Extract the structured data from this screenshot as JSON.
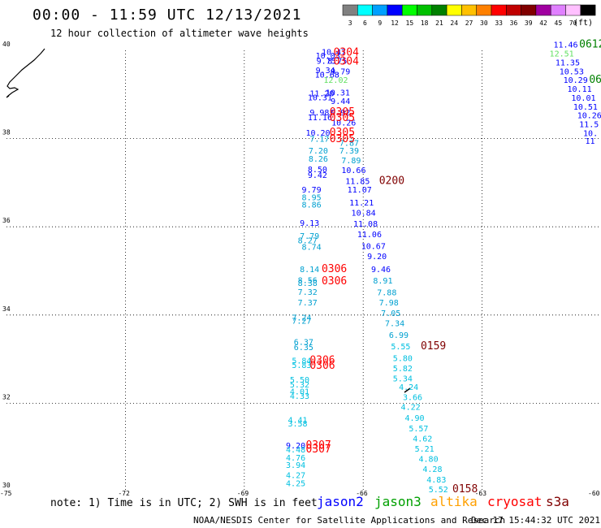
{
  "header": {
    "title": "00:00 - 11:59 UTC 12/13/2021",
    "subtitle": "12 hour collection of altimeter wave heights"
  },
  "legend": {
    "unit": "(ft)",
    "bins": [
      {
        "label": "3",
        "color": "#808080"
      },
      {
        "label": "6",
        "color": "#00ffff"
      },
      {
        "label": "9",
        "color": "#00a0ff"
      },
      {
        "label": "12",
        "color": "#0000ff"
      },
      {
        "label": "15",
        "color": "#00ff00"
      },
      {
        "label": "18",
        "color": "#00c000"
      },
      {
        "label": "21",
        "color": "#008000"
      },
      {
        "label": "24",
        "color": "#ffff00"
      },
      {
        "label": "27",
        "color": "#ffc000"
      },
      {
        "label": "30",
        "color": "#ff8000"
      },
      {
        "label": "33",
        "color": "#ff0000"
      },
      {
        "label": "36",
        "color": "#c00000"
      },
      {
        "label": "39",
        "color": "#800000"
      },
      {
        "label": "42",
        "color": "#a000a0"
      },
      {
        "label": "45",
        "color": "#e080ff"
      },
      {
        "label": "70",
        "color": "#ffc0ff"
      },
      {
        "label": "",
        "color": "#000000"
      }
    ]
  },
  "axes": {
    "lat_labels": [
      "40",
      "38",
      "36",
      "34",
      "32",
      "30"
    ],
    "lon_labels": [
      "-75",
      "-72",
      "-69",
      "-66",
      "-63",
      "-60"
    ]
  },
  "colors": {
    "jason2": "#0000ff",
    "jason3": "#00a000",
    "altika": "#ffa000",
    "cryosat": "#ff0000",
    "s3a": "#800000",
    "cyan": "#00c0e0",
    "lightblue": "#00a0d0",
    "green_lt": "#60e060"
  },
  "note": "note: 1) Time is in UTC; 2) SWH is in feet",
  "satellites": [
    {
      "name": "jason2",
      "color": "#0000ff"
    },
    {
      "name": "jason3",
      "color": "#00a000"
    },
    {
      "name": "altika",
      "color": "#ffa000"
    },
    {
      "name": "cryosat",
      "color": "#ff0000"
    },
    {
      "name": "s3a",
      "color": "#800000"
    }
  ],
  "footer": "NOAA/NESDIS Center for Satellite Applications and Research",
  "timestamp": "Dec 17 15:44:32 UTC 2021",
  "track_west": [
    {
      "t": "10.47",
      "c": "#0000ff",
      "lon": -67.05,
      "lat": 39.9
    },
    {
      "t": "10.03",
      "c": "#0000ff",
      "lon": -67.2,
      "lat": 39.82
    },
    {
      "t": "9.75",
      "c": "#0000ff",
      "lon": -67.18,
      "lat": 39.7
    },
    {
      "t": "8.75",
      "c": "#0000ff",
      "lon": -66.9,
      "lat": 39.7
    },
    {
      "t": "9.34",
      "c": "#0000ff",
      "lon": -67.2,
      "lat": 39.48
    },
    {
      "t": "9.79",
      "c": "#0000ff",
      "lon": -66.82,
      "lat": 39.46
    },
    {
      "t": "10.68",
      "c": "#0000ff",
      "lon": -67.22,
      "lat": 39.38
    },
    {
      "t": "12.02",
      "c": "#60e060",
      "lon": -67.0,
      "lat": 39.26
    },
    {
      "t": "11.20",
      "c": "#0000ff",
      "lon": -67.35,
      "lat": 38.96
    },
    {
      "t": "10.31",
      "c": "#0000ff",
      "lon": -66.95,
      "lat": 38.98
    },
    {
      "t": "10.31",
      "c": "#0000ff",
      "lon": -67.4,
      "lat": 38.87
    },
    {
      "t": "9.44",
      "c": "#0000ff",
      "lon": -66.82,
      "lat": 38.78
    },
    {
      "t": "9.98",
      "c": "#0000ff",
      "lon": -67.35,
      "lat": 38.53
    },
    {
      "t": "9.92",
      "c": "#0000ff",
      "lon": -66.82,
      "lat": 38.53
    },
    {
      "t": "11.16",
      "c": "#0000ff",
      "lon": -67.4,
      "lat": 38.42
    },
    {
      "t": "10.26",
      "c": "#0000ff",
      "lon": -66.8,
      "lat": 38.3
    },
    {
      "t": "10.20",
      "c": "#0000ff",
      "lon": -67.45,
      "lat": 38.07
    },
    {
      "t": "7.17",
      "c": "#00a0d0",
      "lon": -67.35,
      "lat": 37.93
    },
    {
      "t": "7.87",
      "c": "#00a0d0",
      "lon": -66.6,
      "lat": 37.84
    },
    {
      "t": "7.20",
      "c": "#00a0d0",
      "lon": -67.38,
      "lat": 37.66
    },
    {
      "t": "7.39",
      "c": "#00a0d0",
      "lon": -66.6,
      "lat": 37.66
    },
    {
      "t": "8.26",
      "c": "#00a0d0",
      "lon": -67.38,
      "lat": 37.48
    },
    {
      "t": "7.89",
      "c": "#00a0d0",
      "lon": -66.55,
      "lat": 37.44
    },
    {
      "t": "8.50",
      "c": "#0000ff",
      "lon": -67.4,
      "lat": 37.24
    },
    {
      "t": "10.66",
      "c": "#0000ff",
      "lon": -66.55,
      "lat": 37.22
    },
    {
      "t": "9.42",
      "c": "#0000ff",
      "lon": -67.4,
      "lat": 37.11
    },
    {
      "t": "11.85",
      "c": "#0000ff",
      "lon": -66.45,
      "lat": 36.97
    },
    {
      "t": "9.79",
      "c": "#0000ff",
      "lon": -67.55,
      "lat": 36.78
    },
    {
      "t": "11.07",
      "c": "#0000ff",
      "lon": -66.4,
      "lat": 36.78
    },
    {
      "t": "8.95",
      "c": "#00a0d0",
      "lon": -67.55,
      "lat": 36.6
    },
    {
      "t": "11.21",
      "c": "#0000ff",
      "lon": -66.35,
      "lat": 36.48
    },
    {
      "t": "8.86",
      "c": "#00a0d0",
      "lon": -67.55,
      "lat": 36.44
    },
    {
      "t": "10.84",
      "c": "#0000ff",
      "lon": -66.3,
      "lat": 36.25
    },
    {
      "t": "9.13",
      "c": "#0000ff",
      "lon": -67.6,
      "lat": 36.02
    },
    {
      "t": "11.08",
      "c": "#0000ff",
      "lon": -66.25,
      "lat": 36.0
    },
    {
      "t": "7.79",
      "c": "#00a0d0",
      "lon": -67.6,
      "lat": 35.73
    },
    {
      "t": "8.27",
      "c": "#00a0d0",
      "lon": -67.65,
      "lat": 35.63
    },
    {
      "t": "11.06",
      "c": "#0000ff",
      "lon": -66.15,
      "lat": 35.76
    },
    {
      "t": "8.74",
      "c": "#00a0d0",
      "lon": -67.55,
      "lat": 35.48
    },
    {
      "t": "10.67",
      "c": "#0000ff",
      "lon": -66.05,
      "lat": 35.5
    },
    {
      "t": "9.20",
      "c": "#0000ff",
      "lon": -65.9,
      "lat": 35.27
    },
    {
      "t": "8.14",
      "c": "#00a0d0",
      "lon": -67.6,
      "lat": 34.97
    },
    {
      "t": "9.46",
      "c": "#0000ff",
      "lon": -65.8,
      "lat": 34.97
    },
    {
      "t": "8.56",
      "c": "#00a0d0",
      "lon": -67.65,
      "lat": 34.72
    },
    {
      "t": "8.38",
      "c": "#00a0d0",
      "lon": -67.65,
      "lat": 34.66
    },
    {
      "t": "8.91",
      "c": "#00a0d0",
      "lon": -65.75,
      "lat": 34.71
    },
    {
      "t": "7.32",
      "c": "#00a0d0",
      "lon": -67.65,
      "lat": 34.46
    },
    {
      "t": "7.88",
      "c": "#00a0d0",
      "lon": -65.65,
      "lat": 34.45
    },
    {
      "t": "7.37",
      "c": "#00a0d0",
      "lon": -67.65,
      "lat": 34.22
    },
    {
      "t": "7.98",
      "c": "#00a0d0",
      "lon": -65.6,
      "lat": 34.22
    },
    {
      "t": "7.05",
      "c": "#00a0d0",
      "lon": -65.55,
      "lat": 33.98
    },
    {
      "t": "7.24",
      "c": "#00a0d0",
      "lon": -67.8,
      "lat": 33.88
    },
    {
      "t": "7.27",
      "c": "#00a0d0",
      "lon": -67.8,
      "lat": 33.8
    },
    {
      "t": "7.34",
      "c": "#00a0d0",
      "lon": -65.45,
      "lat": 33.75
    },
    {
      "t": "6.99",
      "c": "#00a0d0",
      "lon": -65.35,
      "lat": 33.48
    },
    {
      "t": "6.37",
      "c": "#00a0d0",
      "lon": -67.75,
      "lat": 33.32
    },
    {
      "t": "6.35",
      "c": "#00a0d0",
      "lon": -67.75,
      "lat": 33.2
    },
    {
      "t": "5.55",
      "c": "#00c0e0",
      "lon": -65.3,
      "lat": 33.22
    },
    {
      "t": "5.80",
      "c": "#00c0e0",
      "lon": -65.25,
      "lat": 32.96
    },
    {
      "t": "5.84",
      "c": "#00c0e0",
      "lon": -67.8,
      "lat": 32.9
    },
    {
      "t": "5.83",
      "c": "#00c0e0",
      "lon": -67.8,
      "lat": 32.8
    },
    {
      "t": "5.82",
      "c": "#00c0e0",
      "lon": -65.25,
      "lat": 32.73
    },
    {
      "t": "5.34",
      "c": "#00c0e0",
      "lon": -65.25,
      "lat": 32.5
    },
    {
      "t": "5.50",
      "c": "#00c0e0",
      "lon": -67.85,
      "lat": 32.47
    },
    {
      "t": "5.32",
      "c": "#00c0e0",
      "lon": -67.85,
      "lat": 32.36
    },
    {
      "t": "4.24",
      "c": "#00c0e0",
      "lon": -65.1,
      "lat": 32.3
    },
    {
      "t": "4.01",
      "c": "#00c0e0",
      "lon": -67.85,
      "lat": 32.2
    },
    {
      "t": "3.66",
      "c": "#00c0e0",
      "lon": -65.0,
      "lat": 32.07
    },
    {
      "t": "4.33",
      "c": "#00c0e0",
      "lon": -67.85,
      "lat": 32.1
    },
    {
      "t": "4.22",
      "c": "#00c0e0",
      "lon": -65.05,
      "lat": 31.85
    },
    {
      "t": "4.90",
      "c": "#00c0e0",
      "lon": -64.95,
      "lat": 31.6
    },
    {
      "t": "4.41",
      "c": "#00c0e0",
      "lon": -67.9,
      "lat": 31.56
    },
    {
      "t": "3.58",
      "c": "#00c0e0",
      "lon": -67.9,
      "lat": 31.47
    },
    {
      "t": "5.57",
      "c": "#00c0e0",
      "lon": -64.85,
      "lat": 31.36
    },
    {
      "t": "4.62",
      "c": "#00c0e0",
      "lon": -64.75,
      "lat": 31.13
    },
    {
      "t": "9.20",
      "c": "#0000ff",
      "lon": -67.95,
      "lat": 30.98
    },
    {
      "t": "4.48",
      "c": "#00c0e0",
      "lon": -67.95,
      "lat": 30.88
    },
    {
      "t": "5.21",
      "c": "#00c0e0",
      "lon": -64.7,
      "lat": 30.9
    },
    {
      "t": "4.76",
      "c": "#00c0e0",
      "lon": -67.95,
      "lat": 30.7
    },
    {
      "t": "4.80",
      "c": "#00c0e0",
      "lon": -64.6,
      "lat": 30.67
    },
    {
      "t": "3.94",
      "c": "#00c0e0",
      "lon": -67.95,
      "lat": 30.53
    },
    {
      "t": "4.28",
      "c": "#00c0e0",
      "lon": -64.5,
      "lat": 30.44
    },
    {
      "t": "4.27",
      "c": "#00c0e0",
      "lon": -67.95,
      "lat": 30.3
    },
    {
      "t": "4.83",
      "c": "#00c0e0",
      "lon": -64.4,
      "lat": 30.2
    },
    {
      "t": "4.25",
      "c": "#00c0e0",
      "lon": -67.95,
      "lat": 30.12
    },
    {
      "t": "5.52",
      "c": "#00c0e0",
      "lon": -64.35,
      "lat": 29.98
    }
  ],
  "track_east": [
    {
      "t": "11.46",
      "c": "#0000ff",
      "lon": -61.2,
      "lat": 40.06
    },
    {
      "t": "12.51",
      "c": "#60e060",
      "lon": -61.3,
      "lat": 39.86
    },
    {
      "t": "11.35",
      "c": "#0000ff",
      "lon": -61.15,
      "lat": 39.66
    },
    {
      "t": "10.53",
      "c": "#0000ff",
      "lon": -61.05,
      "lat": 39.46
    },
    {
      "t": "10.29",
      "c": "#0000ff",
      "lon": -60.95,
      "lat": 39.26
    },
    {
      "t": "10.11",
      "c": "#0000ff",
      "lon": -60.85,
      "lat": 39.06
    },
    {
      "t": "10.01",
      "c": "#0000ff",
      "lon": -60.75,
      "lat": 38.86
    },
    {
      "t": "10.51",
      "c": "#0000ff",
      "lon": -60.7,
      "lat": 38.66
    },
    {
      "t": "10.26",
      "c": "#0000ff",
      "lon": -60.6,
      "lat": 38.46
    },
    {
      "t": "11.5",
      "c": "#0000ff",
      "lon": -60.55,
      "lat": 38.26
    },
    {
      "t": "10.",
      "c": "#0000ff",
      "lon": -60.45,
      "lat": 38.06
    },
    {
      "t": "11",
      "c": "#0000ff",
      "lon": -60.4,
      "lat": 37.88
    }
  ],
  "times": [
    {
      "t": "0304",
      "c": "#ff0000",
      "lon": -66.75,
      "lat": 39.88
    },
    {
      "t": "0304",
      "c": "#ff0000",
      "lon": -66.75,
      "lat": 39.68
    },
    {
      "t": "0305",
      "c": "#ff0000",
      "lon": -66.85,
      "lat": 38.53
    },
    {
      "t": "0305",
      "c": "#ff0000",
      "lon": -66.85,
      "lat": 38.4
    },
    {
      "t": "0305",
      "c": "#ff0000",
      "lon": -66.85,
      "lat": 38.07
    },
    {
      "t": "0305",
      "c": "#ff0000",
      "lon": -66.85,
      "lat": 37.92
    },
    {
      "t": "0200",
      "c": "#800000",
      "lon": -65.6,
      "lat": 36.97
    },
    {
      "t": "0306",
      "c": "#ff0000",
      "lon": -67.05,
      "lat": 34.97
    },
    {
      "t": "0306",
      "c": "#ff0000",
      "lon": -67.05,
      "lat": 34.7
    },
    {
      "t": "0159",
      "c": "#800000",
      "lon": -64.55,
      "lat": 33.22
    },
    {
      "t": "0306",
      "c": "#ff0000",
      "lon": -67.35,
      "lat": 32.9
    },
    {
      "t": "0306",
      "c": "#ff0000",
      "lon": -67.35,
      "lat": 32.78
    },
    {
      "t": "0307",
      "c": "#ff0000",
      "lon": -67.45,
      "lat": 30.98
    },
    {
      "t": "0307",
      "c": "#ff0000",
      "lon": -67.45,
      "lat": 30.88
    },
    {
      "t": "0158",
      "c": "#800000",
      "lon": -63.75,
      "lat": 29.98
    },
    {
      "t": "0612",
      "c": "#008000",
      "lon": -60.55,
      "lat": 40.06
    },
    {
      "t": "06",
      "c": "#008000",
      "lon": -60.3,
      "lat": 39.26
    }
  ]
}
